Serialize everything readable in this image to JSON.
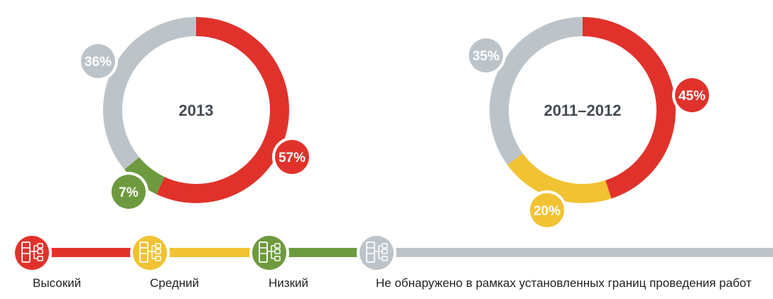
{
  "colors": {
    "high": "#e0322b",
    "medium": "#f1c232",
    "low": "#6e9a3f",
    "not_found": "#bcc4ca",
    "center_text": "#444b52"
  },
  "legend": [
    {
      "key": "high",
      "label": "Высокий",
      "icon": "server-network-icon"
    },
    {
      "key": "medium",
      "label": "Средний",
      "icon": "server-network-icon"
    },
    {
      "key": "low",
      "label": "Низкий",
      "icon": "server-network-icon"
    },
    {
      "key": "not_found",
      "label": "Не обнаружено в рамках установленных границ проведения работ",
      "icon": "server-network-icon"
    }
  ],
  "chart_data": [
    {
      "type": "pie",
      "title": "2013",
      "slices": [
        {
          "key": "high",
          "value": 57,
          "label": "57%"
        },
        {
          "key": "low",
          "value": 7,
          "label": "7%"
        },
        {
          "key": "not_found",
          "value": 36,
          "label": "36%"
        }
      ]
    },
    {
      "type": "pie",
      "title": "2011–2012",
      "slices": [
        {
          "key": "high",
          "value": 45,
          "label": "45%"
        },
        {
          "key": "medium",
          "value": 20,
          "label": "20%"
        },
        {
          "key": "not_found",
          "value": 35,
          "label": "35%"
        }
      ]
    }
  ]
}
